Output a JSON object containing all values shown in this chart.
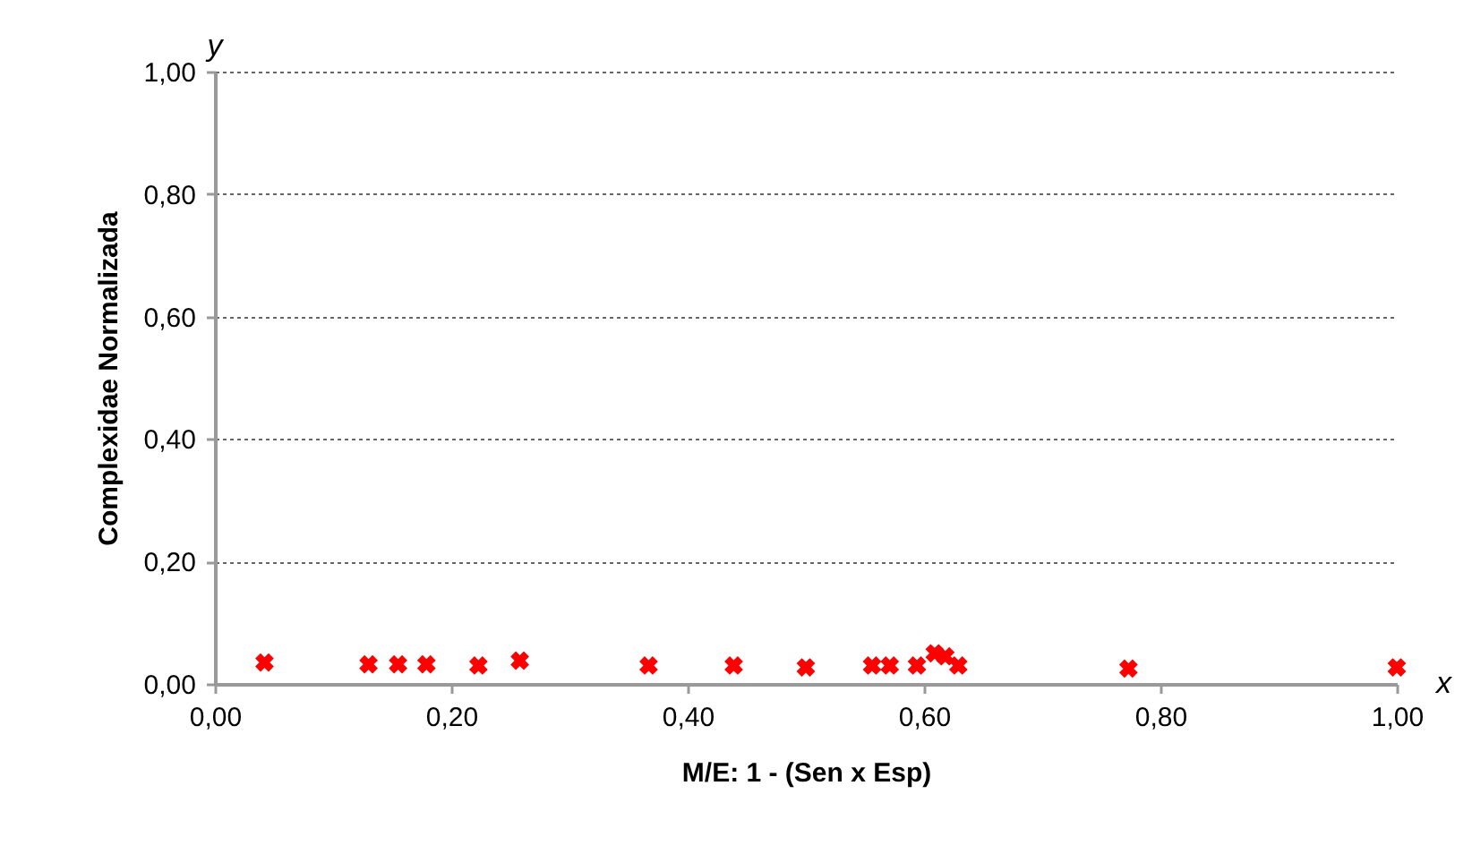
{
  "chart_data": {
    "type": "scatter",
    "xlabel": "M/E:   1 - (Sen x Esp)",
    "ylabel": "Complexidae Normalizada",
    "annotations": [
      "y",
      "x"
    ],
    "x": [
      0.042,
      0.13,
      0.155,
      0.179,
      0.223,
      0.258,
      0.367,
      0.439,
      0.5,
      0.556,
      0.571,
      0.594,
      0.609,
      0.618,
      0.629,
      0.773,
      1.0
    ],
    "series": [
      {
        "color": "#ff0000",
        "values": [
          0.035,
          0.032,
          0.032,
          0.032,
          0.03,
          0.038,
          0.03,
          0.03,
          0.027,
          0.03,
          0.03,
          0.03,
          0.05,
          0.045,
          0.03,
          0.025,
          0.027
        ]
      }
    ],
    "xlim": [
      0,
      1
    ],
    "xticks": [
      {
        "value": 0,
        "label": "0,00"
      },
      {
        "value": 0.2,
        "label": "0,20"
      },
      {
        "value": 0.4,
        "label": "0,40"
      },
      {
        "value": 0.6,
        "label": "0,60"
      },
      {
        "value": 0.8,
        "label": "0,80"
      },
      {
        "value": 1,
        "label": "1,00"
      }
    ],
    "ylim": [
      0,
      1
    ],
    "yticks": [
      {
        "value": 0,
        "label": "0,00"
      },
      {
        "value": 0.2,
        "label": "0,20"
      },
      {
        "value": 0.4,
        "label": "0,40"
      },
      {
        "value": 0.6,
        "label": "0,60"
      },
      {
        "value": 0.8,
        "label": "0,80"
      },
      {
        "value": 1,
        "label": "1,00"
      }
    ],
    "grid": "y",
    "marker": "cross"
  }
}
